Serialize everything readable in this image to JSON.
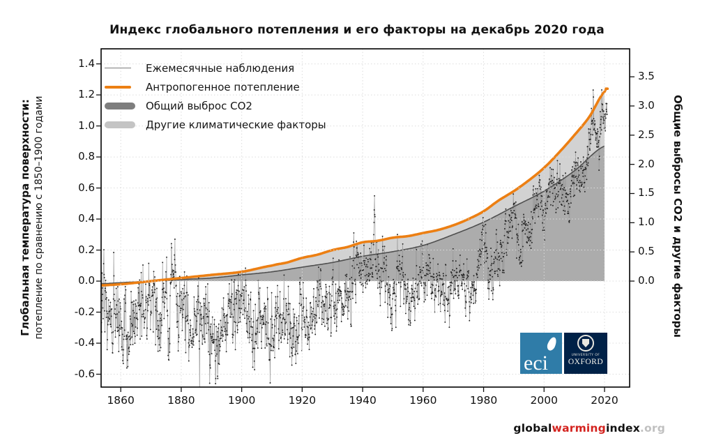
{
  "title": "Индекс глобального потепления и его факторы на декабрь 2020 года",
  "axes": {
    "left": {
      "title_line1": "Глобальная температура поверхности:",
      "title_line2": "потепление по сравнению с 1850–1900 годами"
    },
    "right": {
      "title": "Общие выбросы CO2 и другие факторы"
    }
  },
  "legend": [
    {
      "key": "observations",
      "label": "Ежемесячные наблюдения",
      "swatch": "line",
      "color": "#7a7a7a"
    },
    {
      "key": "anthropogenic",
      "label": "Антропогенное потепление",
      "swatch": "line-thick",
      "color": "#EC7F13"
    },
    {
      "key": "co2",
      "label": "Общий выброс CO2",
      "swatch": "bar",
      "color": "#7E7E7E"
    },
    {
      "key": "other",
      "label": "Другие климатические факторы",
      "swatch": "bar",
      "color": "#C4C4C4"
    }
  ],
  "footer": {
    "global": "global",
    "warming": "warming",
    "index": "index",
    "org": ".org",
    "warming_color": "#D42420",
    "org_color": "#c0c0c0"
  },
  "logos": {
    "eci": {
      "text": "eci",
      "bg": "#2F7CA8"
    },
    "oxford": {
      "line1": "UNIVERSITY OF",
      "line2": "OXFORD",
      "bg": "#002147"
    }
  },
  "chart_data": {
    "type": "line",
    "title": "Индекс глобального потепления и его факторы на декабрь 2020 года",
    "xlim": [
      1853.5,
      2028.3
    ],
    "ylim_left": [
      -0.683,
      1.497
    ],
    "ylim_right": [
      -1.816,
      3.979
    ],
    "x_ticks": [
      1860,
      1880,
      1900,
      1920,
      1940,
      1960,
      1980,
      2000,
      2020
    ],
    "y_ticks_left": [
      1.4,
      1.2,
      1.0,
      0.8,
      0.6,
      0.4,
      0.2,
      0.0,
      -0.2,
      -0.4,
      -0.6
    ],
    "y_ticks_right": [
      3.5,
      3.0,
      2.5,
      2.0,
      1.5,
      1.0,
      0.5,
      0.0
    ],
    "grid_color": "#DCDCDC",
    "fills_end_year": 2020,
    "series": [
      {
        "key": "observations",
        "name": "Ежемесячные наблюдения",
        "type": "line+markers",
        "line_color": "#9A9A9A",
        "marker_color": "#1F1F1F",
        "annual_anchors": [
          [
            1850,
            -0.12
          ],
          [
            1852,
            -0.08
          ],
          [
            1854,
            -0.05
          ],
          [
            1856,
            -0.22
          ],
          [
            1858,
            -0.28
          ],
          [
            1860,
            -0.18
          ],
          [
            1862,
            -0.38
          ],
          [
            1864,
            -0.28
          ],
          [
            1866,
            -0.12
          ],
          [
            1868,
            -0.08
          ],
          [
            1870,
            -0.12
          ],
          [
            1872,
            -0.12
          ],
          [
            1874,
            -0.22
          ],
          [
            1876,
            -0.18
          ],
          [
            1877,
            0.1
          ],
          [
            1878,
            0.22
          ],
          [
            1879,
            -0.15
          ],
          [
            1880,
            -0.12
          ],
          [
            1882,
            -0.1
          ],
          [
            1884,
            -0.28
          ],
          [
            1886,
            -0.28
          ],
          [
            1888,
            -0.2
          ],
          [
            1890,
            -0.32
          ],
          [
            1892,
            -0.32
          ],
          [
            1894,
            -0.3
          ],
          [
            1896,
            -0.12
          ],
          [
            1898,
            -0.18
          ],
          [
            1900,
            -0.1
          ],
          [
            1902,
            -0.22
          ],
          [
            1904,
            -0.38
          ],
          [
            1906,
            -0.22
          ],
          [
            1908,
            -0.38
          ],
          [
            1910,
            -0.38
          ],
          [
            1912,
            -0.32
          ],
          [
            1914,
            -0.12
          ],
          [
            1916,
            -0.28
          ],
          [
            1917,
            -0.42
          ],
          [
            1918,
            -0.28
          ],
          [
            1920,
            -0.2
          ],
          [
            1922,
            -0.24
          ],
          [
            1924,
            -0.22
          ],
          [
            1926,
            -0.06
          ],
          [
            1928,
            -0.16
          ],
          [
            1930,
            -0.06
          ],
          [
            1932,
            -0.12
          ],
          [
            1934,
            -0.08
          ],
          [
            1936,
            -0.06
          ],
          [
            1938,
            0.06
          ],
          [
            1940,
            0.08
          ],
          [
            1942,
            0.06
          ],
          [
            1944,
            0.22
          ],
          [
            1946,
            0.02
          ],
          [
            1948,
            -0.04
          ],
          [
            1950,
            -0.14
          ],
          [
            1952,
            0.04
          ],
          [
            1954,
            -0.1
          ],
          [
            1956,
            -0.16
          ],
          [
            1958,
            0.06
          ],
          [
            1960,
            0.02
          ],
          [
            1962,
            0.06
          ],
          [
            1964,
            -0.16
          ],
          [
            1966,
            -0.04
          ],
          [
            1968,
            -0.04
          ],
          [
            1970,
            0.06
          ],
          [
            1972,
            0.02
          ],
          [
            1973,
            0.16
          ],
          [
            1974,
            -0.08
          ],
          [
            1976,
            -0.1
          ],
          [
            1978,
            0.06
          ],
          [
            1980,
            0.26
          ],
          [
            1982,
            0.08
          ],
          [
            1984,
            0.12
          ],
          [
            1986,
            0.16
          ],
          [
            1988,
            0.32
          ],
          [
            1990,
            0.42
          ],
          [
            1992,
            0.22
          ],
          [
            1994,
            0.3
          ],
          [
            1996,
            0.32
          ],
          [
            1998,
            0.58
          ],
          [
            2000,
            0.42
          ],
          [
            2002,
            0.56
          ],
          [
            2004,
            0.56
          ],
          [
            2006,
            0.6
          ],
          [
            2008,
            0.5
          ],
          [
            2010,
            0.7
          ],
          [
            2012,
            0.64
          ],
          [
            2014,
            0.76
          ],
          [
            2015,
            0.88
          ],
          [
            2016,
            1.1
          ],
          [
            2017,
            0.98
          ],
          [
            2018,
            0.92
          ],
          [
            2019,
            1.04
          ],
          [
            2020,
            1.12
          ],
          [
            2021,
            1.2
          ]
        ],
        "monthly_noise_sd": [
          [
            1850,
            0.15
          ],
          [
            1875,
            0.14
          ],
          [
            1900,
            0.13
          ],
          [
            1925,
            0.11
          ],
          [
            1950,
            0.1
          ],
          [
            1975,
            0.09
          ],
          [
            2000,
            0.08
          ],
          [
            2021,
            0.08
          ]
        ],
        "noise_phi": 0.55,
        "seed": 7
      },
      {
        "key": "anthropogenic",
        "name": "Антропогенное потепление",
        "type": "line",
        "color": "#EC7F13",
        "width": 3.6,
        "anchors": [
          [
            1850,
            -0.03
          ],
          [
            1860,
            -0.02
          ],
          [
            1870,
            0.0
          ],
          [
            1880,
            0.02
          ],
          [
            1890,
            0.04
          ],
          [
            1900,
            0.06
          ],
          [
            1910,
            0.1
          ],
          [
            1915,
            0.12
          ],
          [
            1920,
            0.15
          ],
          [
            1925,
            0.17
          ],
          [
            1930,
            0.2
          ],
          [
            1935,
            0.22
          ],
          [
            1940,
            0.25
          ],
          [
            1945,
            0.26
          ],
          [
            1950,
            0.28
          ],
          [
            1955,
            0.29
          ],
          [
            1960,
            0.31
          ],
          [
            1965,
            0.33
          ],
          [
            1970,
            0.36
          ],
          [
            1975,
            0.4
          ],
          [
            1980,
            0.45
          ],
          [
            1985,
            0.52
          ],
          [
            1990,
            0.58
          ],
          [
            1995,
            0.65
          ],
          [
            2000,
            0.73
          ],
          [
            2005,
            0.83
          ],
          [
            2010,
            0.94
          ],
          [
            2015,
            1.06
          ],
          [
            2020,
            1.22
          ],
          [
            2021,
            1.24
          ]
        ]
      },
      {
        "key": "co2",
        "name": "Общий выброс CO2",
        "type": "area",
        "fill": "#ACACAC",
        "line_color": "#4F4F4F",
        "line_width": 1.6,
        "anchors": [
          [
            1850,
            -0.02
          ],
          [
            1860,
            -0.01
          ],
          [
            1870,
            0.0
          ],
          [
            1880,
            0.01
          ],
          [
            1890,
            0.02
          ],
          [
            1900,
            0.04
          ],
          [
            1910,
            0.06
          ],
          [
            1920,
            0.09
          ],
          [
            1930,
            0.12
          ],
          [
            1940,
            0.16
          ],
          [
            1950,
            0.19
          ],
          [
            1960,
            0.23
          ],
          [
            1970,
            0.3
          ],
          [
            1980,
            0.38
          ],
          [
            1990,
            0.48
          ],
          [
            2000,
            0.58
          ],
          [
            2010,
            0.71
          ],
          [
            2020,
            0.87
          ]
        ]
      },
      {
        "key": "other",
        "name": "Другие климатические факторы",
        "type": "area_between",
        "fill": "#D2D2D2",
        "upper": "anthropogenic",
        "lower": "co2"
      }
    ]
  }
}
